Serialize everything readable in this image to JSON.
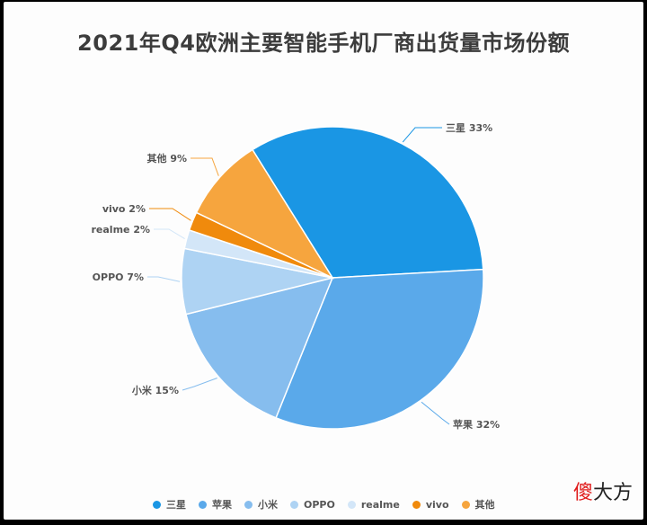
{
  "chart_data": {
    "type": "pie",
    "title": "2021年Q4欧洲主要智能手机厂商出货量市场份额",
    "slices": [
      {
        "name": "三星",
        "value": 33,
        "label": "三星 33%",
        "color": "#1a96e4"
      },
      {
        "name": "苹果",
        "value": 32,
        "label": "苹果 32%",
        "color": "#5aa9ea"
      },
      {
        "name": "小米",
        "value": 15,
        "label": "小米 15%",
        "color": "#86bdee"
      },
      {
        "name": "OPPO",
        "value": 7,
        "label": "OPPO 7%",
        "color": "#aed3f3"
      },
      {
        "name": "realme",
        "value": 2,
        "label": "realme 2%",
        "color": "#d3e6f8"
      },
      {
        "name": "vivo",
        "value": 2,
        "label": "vivo 2%",
        "color": "#f08a0c"
      },
      {
        "name": "其他",
        "value": 9,
        "label": "其他 9%",
        "color": "#f6a53e"
      }
    ],
    "legend": [
      "三星",
      "苹果",
      "小米",
      "OPPO",
      "realme",
      "vivo",
      "其他"
    ],
    "legend_placement": "bottom"
  },
  "watermark": {
    "first": "傻",
    "rest": "大方"
  }
}
